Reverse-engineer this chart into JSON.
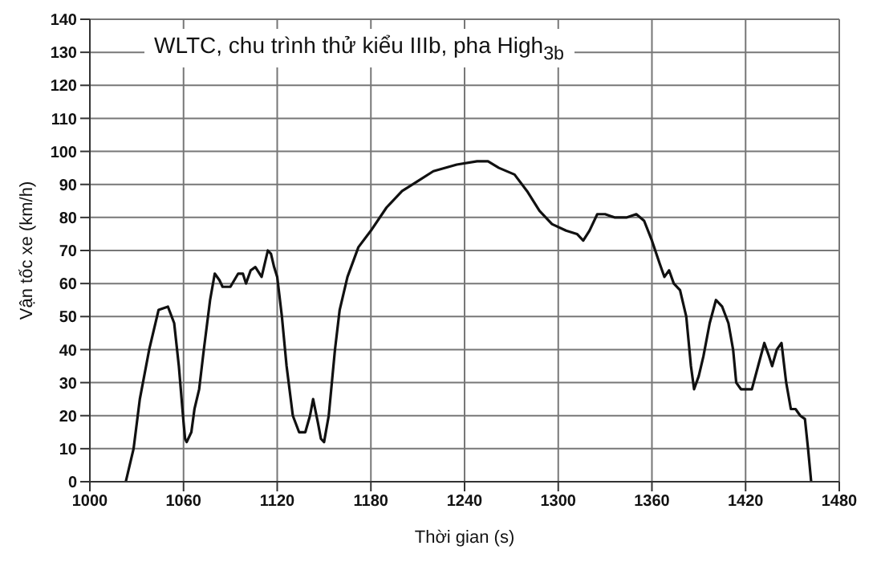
{
  "chart_data": {
    "type": "line",
    "title": "WLTC, chu trình thử kiểu IIIb, pha High$_{3b}$",
    "xlabel": "Thời gian (s)",
    "ylabel": "Vận tốc xe (km/h)",
    "x": [
      1023,
      1028,
      1032,
      1038,
      1044,
      1050,
      1054,
      1057,
      1060,
      1061,
      1062,
      1063,
      1065,
      1067,
      1070,
      1073,
      1077,
      1080,
      1083,
      1085,
      1090,
      1095,
      1098,
      1100,
      1103,
      1106,
      1110,
      1114,
      1116,
      1118,
      1120,
      1123,
      1126,
      1130,
      1134,
      1138,
      1141,
      1143,
      1146,
      1148,
      1150,
      1153,
      1157,
      1160,
      1165,
      1172,
      1180,
      1190,
      1200,
      1210,
      1220,
      1235,
      1248,
      1255,
      1262,
      1272,
      1280,
      1288,
      1296,
      1305,
      1312,
      1316,
      1320,
      1325,
      1330,
      1336,
      1344,
      1350,
      1355,
      1360,
      1365,
      1368,
      1371,
      1374,
      1378,
      1382,
      1385,
      1387,
      1390,
      1393,
      1397,
      1401,
      1405,
      1409,
      1412,
      1414,
      1417,
      1424,
      1428,
      1432,
      1435,
      1437,
      1440,
      1443,
      1446,
      1449,
      1452,
      1455,
      1458,
      1460,
      1462
    ],
    "series": [
      {
        "color": "#111111",
        "values": [
          0,
          10,
          25,
          40,
          52,
          53,
          48,
          35,
          18,
          13,
          12,
          13,
          15,
          22,
          28,
          40,
          55,
          63,
          61,
          59,
          59,
          63,
          63,
          60,
          64,
          65,
          62,
          70,
          69,
          65,
          62,
          50,
          35,
          20,
          15,
          15,
          20,
          25,
          18,
          13,
          12,
          20,
          40,
          52,
          62,
          71,
          76,
          83,
          88,
          91,
          94,
          96,
          97,
          97,
          95,
          93,
          88,
          82,
          78,
          76,
          75,
          73,
          76,
          81,
          81,
          80,
          80,
          81,
          79,
          73,
          66,
          62,
          64,
          60,
          58,
          50,
          35,
          28,
          32,
          38,
          48,
          55,
          53,
          48,
          40,
          30,
          28,
          28,
          35,
          42,
          38,
          35,
          40,
          42,
          30,
          22,
          22,
          20,
          19,
          10,
          0
        ]
      }
    ],
    "xlim": [
      1000,
      1480
    ],
    "xticks": [
      1000,
      1060,
      1120,
      1180,
      1240,
      1300,
      1360,
      1420,
      1480
    ],
    "ylim": [
      0,
      140
    ],
    "yticks": [
      0,
      10,
      20,
      30,
      40,
      50,
      60,
      70,
      80,
      90,
      100,
      110,
      120,
      130,
      140
    ],
    "grid": true,
    "marker": "none",
    "line_style": "solid"
  }
}
